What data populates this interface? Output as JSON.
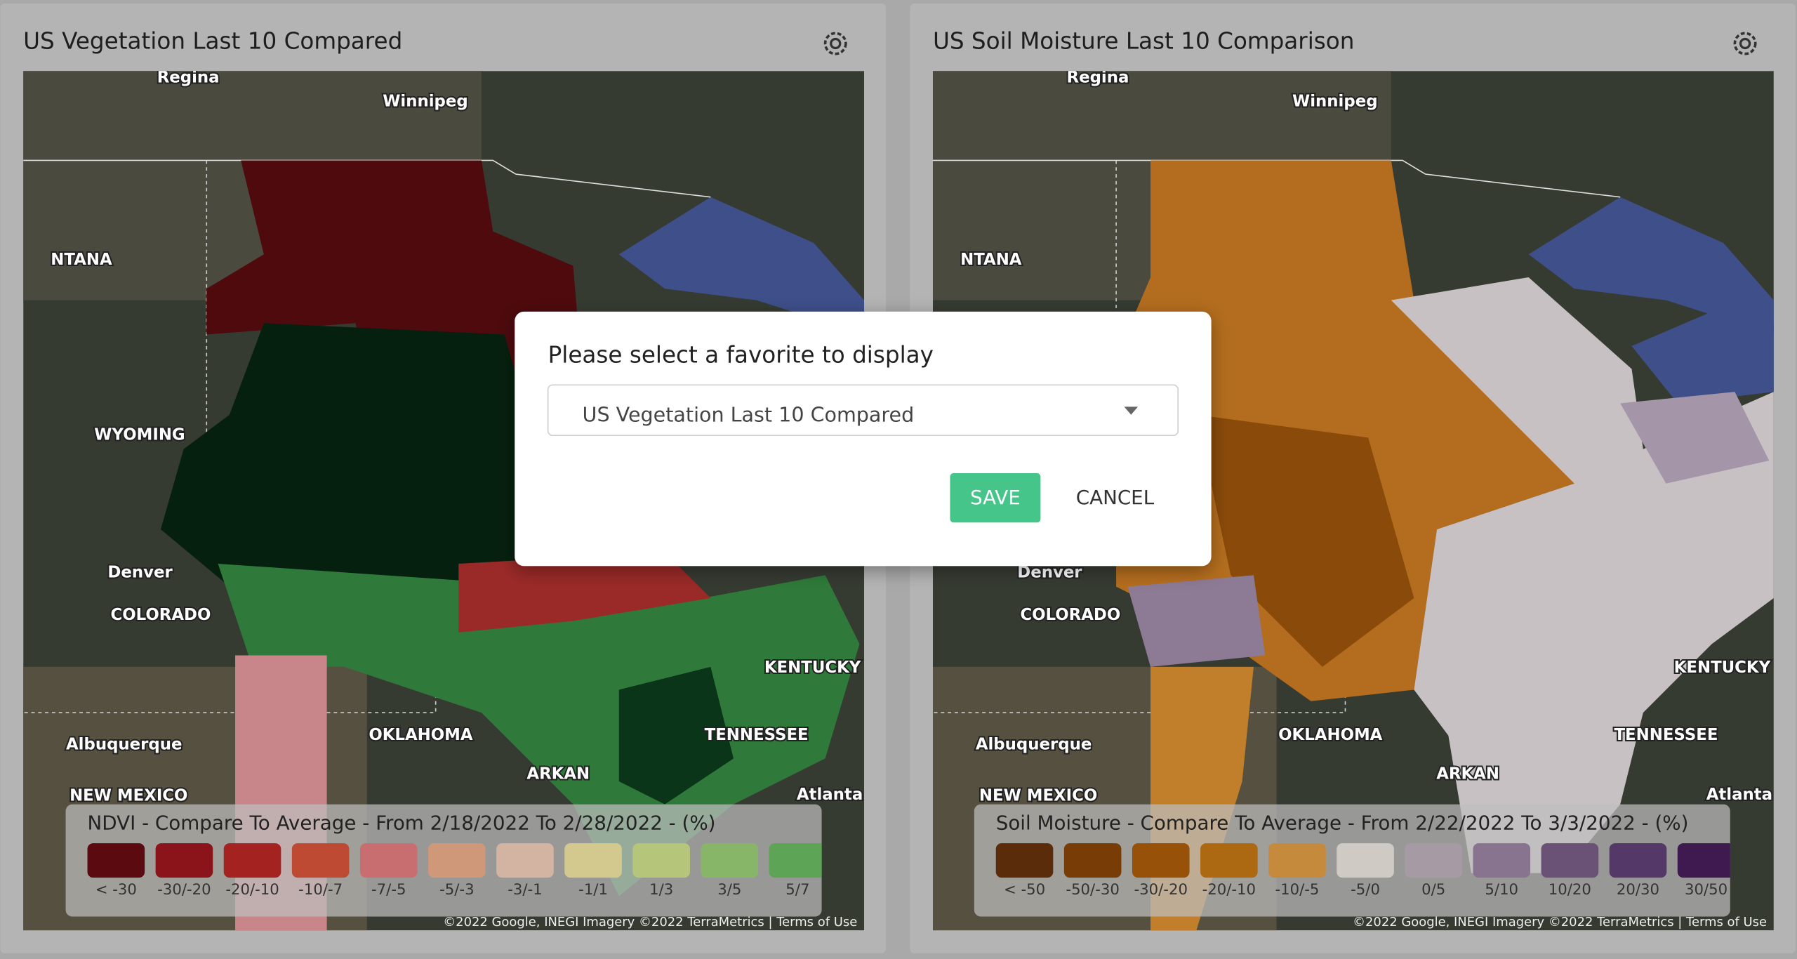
{
  "panels": [
    {
      "title": "US Vegetation Last 10 Compared",
      "legend": {
        "title": "NDVI - Compare To Average - From 2/18/2022 To 2/28/2022 - (%)",
        "items": [
          {
            "label": "< -30",
            "color": "#5b0b10"
          },
          {
            "label": "-30/-20",
            "color": "#8a1419"
          },
          {
            "label": "-20/-10",
            "color": "#a4221f"
          },
          {
            "label": "-10/-7",
            "color": "#be4a34"
          },
          {
            "label": "-7/-5",
            "color": "#c96e70"
          },
          {
            "label": "-5/-3",
            "color": "#cf9879"
          },
          {
            "label": "-3/-1",
            "color": "#d3b3a2"
          },
          {
            "label": "-1/1",
            "color": "#d3c98f"
          },
          {
            "label": "1/3",
            "color": "#b5c57a"
          },
          {
            "label": "3/5",
            "color": "#88b668"
          },
          {
            "label": "5/7",
            "color": "#5ea456"
          }
        ]
      }
    },
    {
      "title": "US Soil Moisture Last 10 Comparison",
      "legend": {
        "title": "Soil Moisture - Compare To Average - From 2/22/2022 To 3/3/2022 - (%)",
        "items": [
          {
            "label": "< -50",
            "color": "#5a2c0a"
          },
          {
            "label": "-50/-30",
            "color": "#783d07"
          },
          {
            "label": "-30/-20",
            "color": "#975108"
          },
          {
            "label": "-20/-10",
            "color": "#ad6912"
          },
          {
            "label": "-10/-5",
            "color": "#c68a3c"
          },
          {
            "label": "-5/0",
            "color": "#cfcac3"
          },
          {
            "label": "0/5",
            "color": "#a69aa5"
          },
          {
            "label": "5/10",
            "color": "#88748e"
          },
          {
            "label": "10/20",
            "color": "#695276"
          },
          {
            "label": "20/30",
            "color": "#543968"
          },
          {
            "label": "30/50",
            "color": "#3e1a50"
          }
        ]
      }
    }
  ],
  "map_labels": [
    "Regina",
    "Winnipeg",
    "NTANA",
    "WYOMING",
    "Denver",
    "COLORADO",
    "Albuquerque",
    "NEW MEXICO",
    "OKLAHOMA",
    "ARKAN",
    "TENNESSEE",
    "KENTUCKY",
    "Atlanta"
  ],
  "attribution": "©2022 Google, INEGI Imagery ©2022 TerraMetrics | Terms of Use",
  "dialog": {
    "title": "Please select a favorite to display",
    "selected": "US Vegetation Last 10 Compared",
    "save": "SAVE",
    "cancel": "CANCEL"
  }
}
